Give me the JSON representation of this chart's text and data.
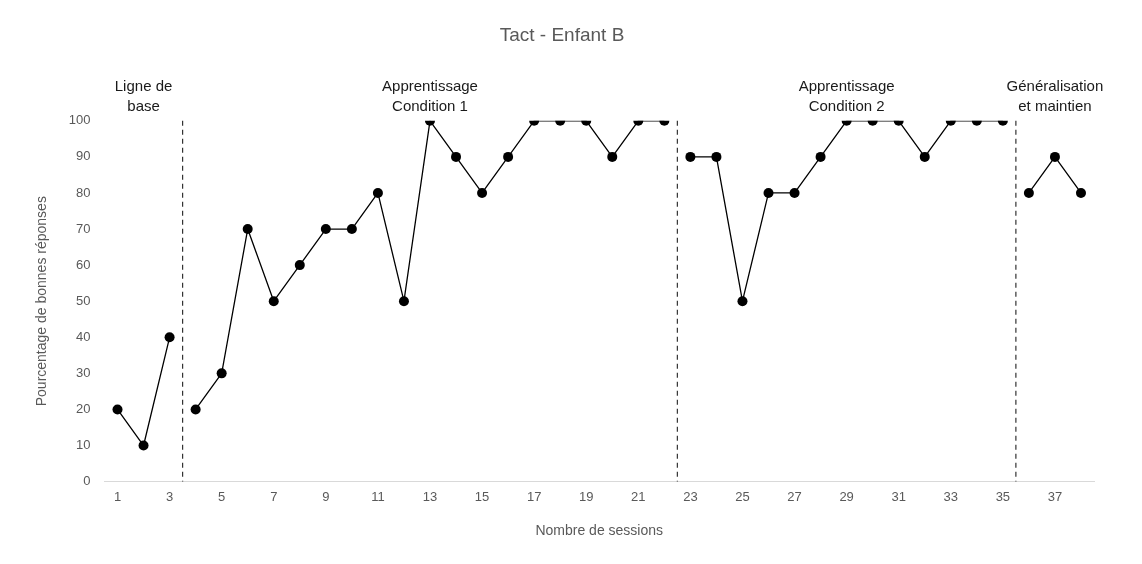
{
  "chart_data": {
    "type": "line",
    "title": "Tact - Enfant B",
    "xlabel": "Nombre de sessions",
    "ylabel": "Pourcentage de bonnes réponses",
    "xlim": [
      0.5,
      38.5
    ],
    "xticks": [
      1,
      3,
      5,
      7,
      9,
      11,
      13,
      15,
      17,
      19,
      21,
      23,
      25,
      27,
      29,
      31,
      33,
      35,
      37
    ],
    "ylim": [
      0,
      100
    ],
    "yticks": [
      0,
      10,
      20,
      30,
      40,
      50,
      60,
      70,
      80,
      90,
      100
    ],
    "grid": false,
    "legend": false,
    "marker": "circle",
    "line_style": "solid",
    "series": [
      {
        "color": "#000000",
        "x": [
          1,
          2,
          3
        ],
        "values": [
          20,
          10,
          40
        ]
      },
      {
        "color": "#000000",
        "x": [
          4,
          5,
          6,
          7,
          8,
          9,
          10,
          11,
          12,
          13,
          14,
          15,
          16,
          17,
          18,
          19,
          20,
          21,
          22
        ],
        "values": [
          20,
          30,
          70,
          50,
          60,
          70,
          70,
          80,
          50,
          100,
          90,
          80,
          90,
          100,
          100,
          100,
          90,
          100,
          100
        ]
      },
      {
        "color": "#000000",
        "x": [
          23,
          24,
          25,
          26,
          27,
          28,
          29,
          30,
          31,
          32,
          33,
          34,
          35
        ],
        "values": [
          90,
          90,
          50,
          80,
          80,
          90,
          100,
          100,
          100,
          90,
          100,
          100,
          100
        ]
      },
      {
        "color": "#000000",
        "x": [
          36,
          37,
          38
        ],
        "values": [
          80,
          90,
          80
        ]
      }
    ],
    "ref_lines": [
      {
        "axis": "x",
        "value": 3.5,
        "line_style": "dashed",
        "color": "#333333"
      },
      {
        "axis": "x",
        "value": 22.5,
        "line_style": "dashed",
        "color": "#333333"
      },
      {
        "axis": "x",
        "value": 35.5,
        "line_style": "dashed",
        "color": "#333333"
      }
    ],
    "annotations": [
      "Ligne de\nbase",
      "Apprentissage\nCondition 1",
      "Apprentissage\nCondition 2",
      "Généralisation\net maintien"
    ]
  }
}
